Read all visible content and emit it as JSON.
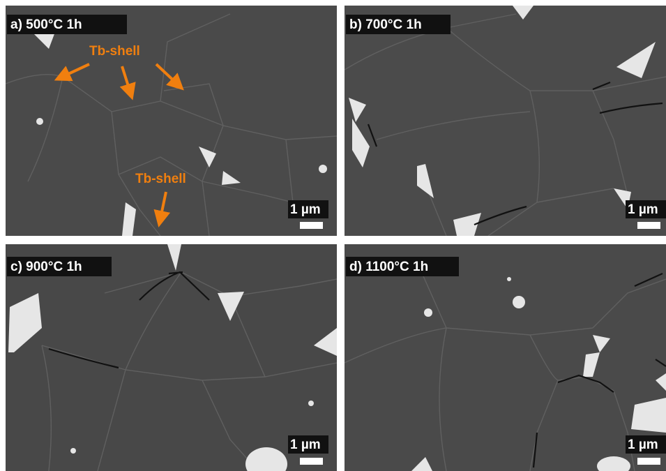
{
  "panels": [
    {
      "label": "a) 500°C 1h",
      "scale_bar": "1 µm",
      "annotations": [
        "Tb-shell",
        "Tb-shell"
      ]
    },
    {
      "label": "b) 700°C 1h",
      "scale_bar": "1 µm"
    },
    {
      "label": "c) 900°C 1h",
      "scale_bar": "1 µm"
    },
    {
      "label": "d) 1100°C 1h",
      "scale_bar": "1 µm"
    }
  ]
}
